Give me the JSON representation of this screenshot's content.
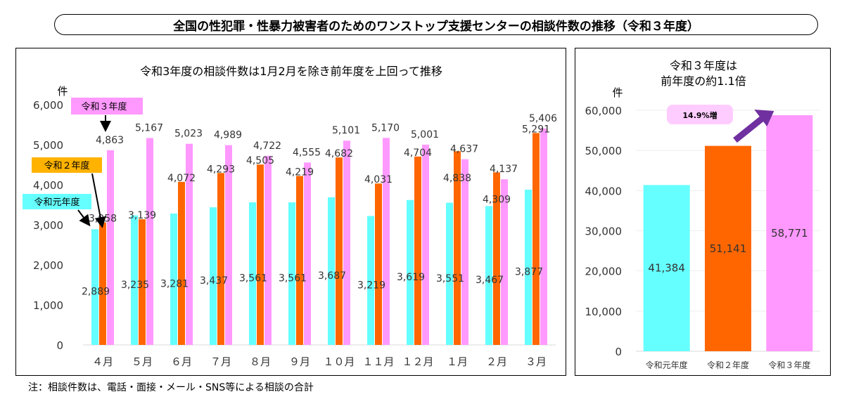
{
  "title": "全国の性犯罪・性暴力被害者のためのワンストップ支援センターの相談件数の推移（令和３年度）",
  "note": "注：相談件数は、電話・面接・メール・SNS等による相談の合計",
  "colors": {
    "r1": "#66FFFF",
    "r2": "#FF6600",
    "r3": "#FF99FF",
    "r2_label_bg": "#FFB300",
    "arrow": "#7030A0",
    "growth_bg": "#FFCCFF"
  },
  "chart_data": [
    {
      "type": "bar",
      "title": "令和3年度の相談件数は1月2月を除き前年度を上回って推移",
      "ylabel": "件",
      "categories": [
        "４月",
        "５月",
        "６月",
        "７月",
        "８月",
        "９月",
        "１０月",
        "１１月",
        "１２月",
        "１月",
        "２月",
        "３月"
      ],
      "series": [
        {
          "name": "令和元年度",
          "values": [
            2889,
            3235,
            3281,
            3437,
            3561,
            3561,
            3687,
            3219,
            3619,
            3551,
            3467,
            3877
          ]
        },
        {
          "name": "令和２年度",
          "values": [
            3058,
            3139,
            4072,
            4293,
            4505,
            4219,
            4682,
            4031,
            4704,
            4838,
            4309,
            5291
          ]
        },
        {
          "name": "令和３年度",
          "values": [
            4863,
            5167,
            5023,
            4989,
            4722,
            4555,
            5101,
            5170,
            5001,
            4637,
            4137,
            5406
          ]
        }
      ],
      "ylim": [
        0,
        6000
      ],
      "yticks": [
        "0",
        "1,000",
        "2,000",
        "3,000",
        "4,000",
        "5,000",
        "6,000"
      ],
      "legend": "annotation labels with arrows"
    },
    {
      "type": "bar",
      "title": "令和３年度は\n前年度の約1.1倍",
      "ylabel": "件",
      "categories": [
        "令和元年度",
        "令和２年度",
        "令和３年度"
      ],
      "values": [
        41384,
        51141,
        58771
      ],
      "ylim": [
        0,
        60000
      ],
      "yticks": [
        "0",
        "10,000",
        "20,000",
        "30,000",
        "40,000",
        "50,000",
        "60,000"
      ],
      "annotation": "14.9%増"
    }
  ]
}
